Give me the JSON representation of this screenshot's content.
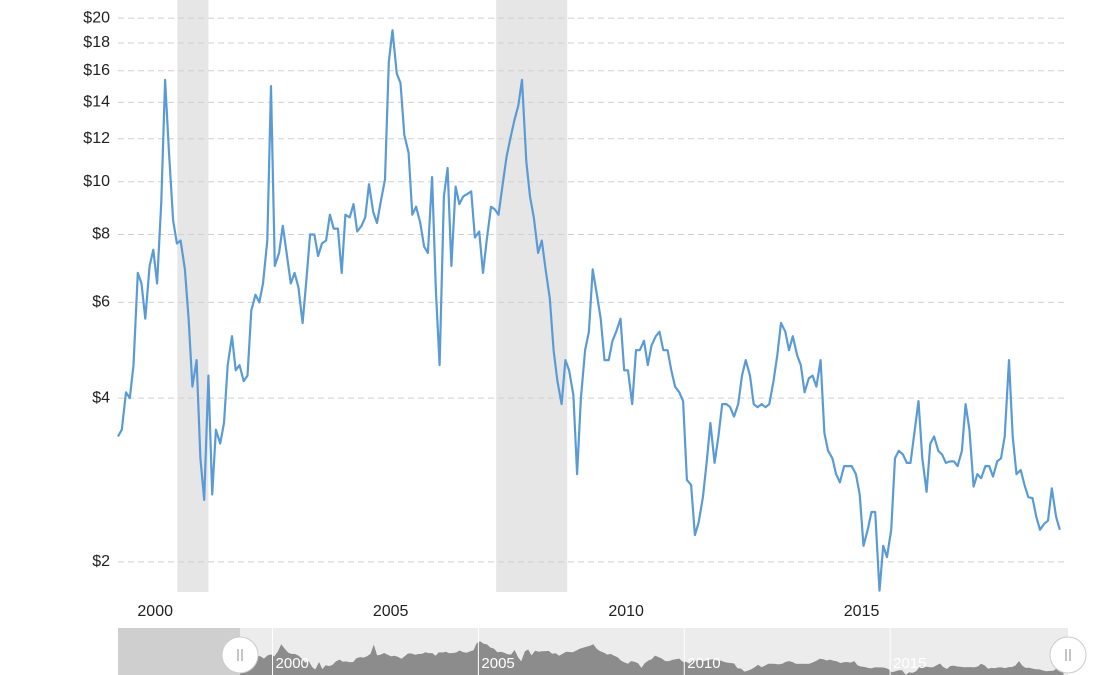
{
  "chart_data": {
    "type": "line",
    "log_y": true,
    "grid": true,
    "ylim": [
      1.76,
      20.7
    ],
    "yticks": [
      {
        "value": 2,
        "label": "$2"
      },
      {
        "value": 4,
        "label": "$4"
      },
      {
        "value": 6,
        "label": "$6"
      },
      {
        "value": 8,
        "label": "$8"
      },
      {
        "value": 10,
        "label": "$10"
      },
      {
        "value": 12,
        "label": "$12"
      },
      {
        "value": 14,
        "label": "$14"
      },
      {
        "value": 16,
        "label": "$16"
      },
      {
        "value": 18,
        "label": "$18"
      },
      {
        "value": 20,
        "label": "$20"
      }
    ],
    "xlim": [
      1999.21,
      2019.32
    ],
    "xticks": [
      2000,
      2005,
      2010,
      2015
    ],
    "recessions": [
      [
        2000.47,
        2001.13
      ],
      [
        2007.24,
        2008.75
      ]
    ],
    "recession_color": "#e6e6e6",
    "series": [
      {
        "color": "#5b9bd5",
        "x": [
          1999.21,
          1999.29,
          1999.38,
          1999.46,
          1999.54,
          1999.63,
          1999.71,
          1999.79,
          1999.88,
          1999.96,
          2000.04,
          2000.13,
          2000.21,
          2000.29,
          2000.38,
          2000.46,
          2000.54,
          2000.63,
          2000.71,
          2000.79,
          2000.88,
          2000.96,
          2001.04,
          2001.13,
          2001.21,
          2001.29,
          2001.38,
          2001.46,
          2001.54,
          2001.63,
          2001.71,
          2001.79,
          2001.88,
          2001.96,
          2002.04,
          2002.13,
          2002.21,
          2002.29,
          2002.38,
          2002.46,
          2002.54,
          2002.63,
          2002.71,
          2002.79,
          2002.88,
          2002.96,
          2003.04,
          2003.13,
          2003.21,
          2003.29,
          2003.38,
          2003.46,
          2003.54,
          2003.63,
          2003.71,
          2003.79,
          2003.88,
          2003.96,
          2004.04,
          2004.13,
          2004.21,
          2004.29,
          2004.38,
          2004.46,
          2004.54,
          2004.63,
          2004.71,
          2004.79,
          2004.88,
          2004.96,
          2005.04,
          2005.13,
          2005.21,
          2005.29,
          2005.38,
          2005.46,
          2005.54,
          2005.63,
          2005.71,
          2005.79,
          2005.88,
          2005.96,
          2006.04,
          2006.13,
          2006.21,
          2006.29,
          2006.38,
          2006.46,
          2006.54,
          2006.63,
          2006.71,
          2006.79,
          2006.88,
          2006.96,
          2007.04,
          2007.13,
          2007.21,
          2007.29,
          2007.38,
          2007.46,
          2007.54,
          2007.63,
          2007.71,
          2007.79,
          2007.88,
          2007.96,
          2008.04,
          2008.13,
          2008.21,
          2008.29,
          2008.38,
          2008.46,
          2008.54,
          2008.63,
          2008.71,
          2008.79,
          2008.88,
          2008.96,
          2009.04,
          2009.13,
          2009.21,
          2009.29,
          2009.38,
          2009.46,
          2009.54,
          2009.63,
          2009.71,
          2009.79,
          2009.88,
          2009.96,
          2010.04,
          2010.13,
          2010.21,
          2010.29,
          2010.38,
          2010.46,
          2010.54,
          2010.63,
          2010.71,
          2010.79,
          2010.88,
          2010.96,
          2011.04,
          2011.13,
          2011.21,
          2011.29,
          2011.38,
          2011.46,
          2011.54,
          2011.63,
          2011.71,
          2011.79,
          2011.88,
          2011.96,
          2012.04,
          2012.13,
          2012.21,
          2012.29,
          2012.38,
          2012.46,
          2012.54,
          2012.63,
          2012.71,
          2012.79,
          2012.88,
          2012.96,
          2013.04,
          2013.13,
          2013.21,
          2013.29,
          2013.38,
          2013.46,
          2013.54,
          2013.63,
          2013.71,
          2013.79,
          2013.88,
          2013.96,
          2014.04,
          2014.13,
          2014.21,
          2014.29,
          2014.38,
          2014.46,
          2014.54,
          2014.63,
          2014.71,
          2014.79,
          2014.88,
          2014.96,
          2015.04,
          2015.13,
          2015.21,
          2015.29,
          2015.38,
          2015.46,
          2015.54,
          2015.63,
          2015.71,
          2015.79,
          2015.88,
          2015.96,
          2016.04,
          2016.13,
          2016.21,
          2016.29,
          2016.38,
          2016.46,
          2016.54,
          2016.63,
          2016.71,
          2016.79,
          2016.88,
          2016.96,
          2017.04,
          2017.13,
          2017.21,
          2017.29,
          2017.38,
          2017.46,
          2017.54,
          2017.63,
          2017.71,
          2017.79,
          2017.88,
          2017.96,
          2018.04,
          2018.13,
          2018.21,
          2018.29,
          2018.38,
          2018.46,
          2018.54,
          2018.63,
          2018.71,
          2018.79,
          2018.88,
          2018.96,
          2019.04,
          2019.13,
          2019.21
        ],
        "values": [
          3.4,
          3.5,
          4.1,
          4.0,
          4.6,
          6.8,
          6.5,
          5.6,
          7.0,
          7.5,
          6.5,
          9.2,
          15.4,
          11.4,
          8.5,
          7.7,
          7.8,
          6.9,
          5.6,
          4.2,
          4.7,
          3.1,
          2.6,
          4.4,
          2.66,
          3.5,
          3.3,
          3.6,
          4.6,
          5.2,
          4.5,
          4.6,
          4.3,
          4.4,
          5.8,
          6.2,
          6.0,
          6.5,
          7.8,
          15.0,
          7.0,
          7.4,
          8.3,
          7.4,
          6.5,
          6.8,
          6.4,
          5.5,
          6.6,
          8.0,
          8.0,
          7.3,
          7.7,
          7.8,
          8.7,
          8.2,
          8.2,
          6.8,
          8.7,
          8.6,
          9.1,
          8.1,
          8.3,
          8.6,
          9.9,
          8.8,
          8.4,
          9.2,
          10.1,
          16.6,
          19.0,
          15.8,
          15.2,
          12.2,
          11.3,
          8.7,
          9.0,
          8.4,
          7.6,
          7.4,
          10.2,
          6.3,
          4.6,
          9.4,
          10.6,
          7.0,
          9.8,
          9.1,
          9.4,
          9.5,
          9.6,
          7.9,
          8.1,
          6.8,
          7.8,
          9.0,
          8.9,
          8.7,
          9.9,
          11.1,
          12.0,
          13.0,
          13.8,
          15.4,
          10.9,
          9.4,
          8.6,
          7.4,
          7.8,
          6.9,
          6.1,
          4.9,
          4.3,
          3.9,
          4.7,
          4.5,
          4.05,
          2.9,
          4.0,
          4.9,
          5.3,
          6.9,
          6.2,
          5.6,
          4.7,
          4.7,
          5.1,
          5.3,
          5.6,
          4.5,
          4.5,
          3.9,
          4.9,
          4.9,
          5.1,
          4.6,
          5.0,
          5.2,
          5.3,
          4.9,
          4.9,
          4.5,
          4.2,
          4.1,
          3.95,
          2.83,
          2.77,
          2.24,
          2.36,
          2.63,
          3.04,
          3.6,
          3.04,
          3.4,
          3.9,
          3.9,
          3.85,
          3.7,
          3.9,
          4.4,
          4.7,
          4.4,
          3.9,
          3.85,
          3.9,
          3.85,
          3.9,
          4.3,
          4.8,
          5.5,
          5.3,
          4.9,
          5.2,
          4.8,
          4.6,
          4.1,
          4.35,
          4.4,
          4.2,
          4.7,
          3.45,
          3.2,
          3.1,
          2.9,
          2.8,
          3.0,
          3.0,
          3.0,
          2.9,
          2.66,
          2.14,
          2.29,
          2.47,
          2.47,
          1.77,
          2.14,
          2.04,
          2.29,
          3.1,
          3.2,
          3.15,
          3.04,
          3.04,
          3.5,
          3.95,
          3.1,
          2.69,
          3.3,
          3.4,
          3.2,
          3.15,
          3.04,
          3.06,
          3.06,
          3.0,
          3.2,
          3.9,
          3.5,
          2.75,
          2.9,
          2.85,
          3.0,
          3.0,
          2.87,
          3.06,
          3.1,
          3.4,
          4.7,
          3.4,
          2.9,
          2.95,
          2.77,
          2.63,
          2.62,
          2.42,
          2.29,
          2.35,
          2.38,
          2.73,
          2.42,
          2.29
        ]
      }
    ]
  }
}
